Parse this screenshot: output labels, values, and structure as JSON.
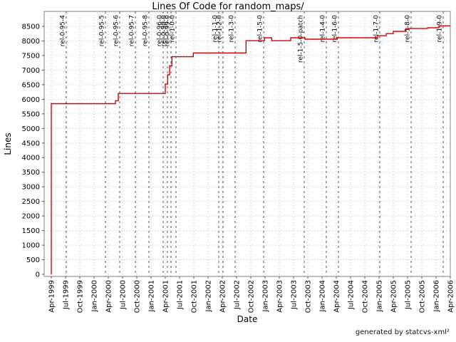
{
  "page": {
    "title": "Lines Of Code for random_maps/",
    "footer": "generated by statcvs-xml²"
  },
  "chart_data": {
    "type": "line",
    "subtype": "step",
    "title": "Lines Of Code for random_maps/",
    "xlabel": "Date",
    "ylabel": "Lines",
    "ylim": [
      0,
      9000
    ],
    "y_tick_step": 500,
    "y_ticks": [
      0,
      500,
      1000,
      1500,
      2000,
      2500,
      3000,
      3500,
      4000,
      4500,
      5000,
      5500,
      6000,
      6500,
      7000,
      7500,
      8000,
      8500
    ],
    "x_ticks": [
      "Apr-1999",
      "Jul-1999",
      "Oct-1999",
      "Jan-2000",
      "Apr-2000",
      "Jul-2000",
      "Oct-2000",
      "Jan-2001",
      "Apr-2001",
      "Jul-2001",
      "Oct-2001",
      "Jan-2002",
      "Apr-2002",
      "Jul-2002",
      "Oct-2002",
      "Jan-2003",
      "Apr-2003",
      "Jul-2003",
      "Oct-2003",
      "Jan-2004",
      "Apr-2004",
      "Jul-2004",
      "Oct-2004",
      "Jan-2005",
      "Apr-2005",
      "Jul-2005",
      "Oct-2005",
      "Jan-2006",
      "Apr-2006"
    ],
    "grid": true,
    "legend": "none",
    "series": [
      {
        "name": "Lines of Code",
        "color": "#dd0000",
        "steps": [
          {
            "date": "1999-04",
            "m": 0,
            "loc": 0
          },
          {
            "date": "1999-04",
            "m": 0,
            "loc": 5850
          },
          {
            "date": "2000-05",
            "m": 13.5,
            "loc": 5950
          },
          {
            "date": "2000-06",
            "m": 14.1,
            "loc": 6200
          },
          {
            "date": "2001-04",
            "m": 24.0,
            "loc": 6520
          },
          {
            "date": "2001-04",
            "m": 24.5,
            "loc": 6840
          },
          {
            "date": "2001-05",
            "m": 24.9,
            "loc": 7150
          },
          {
            "date": "2001-05",
            "m": 25.4,
            "loc": 7460
          },
          {
            "date": "2001-10",
            "m": 29.9,
            "loc": 7590
          },
          {
            "date": "2002-09",
            "m": 41.0,
            "loc": 8010
          },
          {
            "date": "2002-12",
            "m": 44.9,
            "loc": 8110
          },
          {
            "date": "2003-02",
            "m": 46.4,
            "loc": 8010
          },
          {
            "date": "2003-06",
            "m": 50.4,
            "loc": 8110
          },
          {
            "date": "2003-09",
            "m": 53.4,
            "loc": 8060
          },
          {
            "date": "2004-04",
            "m": 60.2,
            "loc": 8110
          },
          {
            "date": "2005-01",
            "m": 68.7,
            "loc": 8180
          },
          {
            "date": "2005-02",
            "m": 70.5,
            "loc": 8250
          },
          {
            "date": "2005-04",
            "m": 72.0,
            "loc": 8330
          },
          {
            "date": "2005-06",
            "m": 74.7,
            "loc": 8430
          },
          {
            "date": "2005-11",
            "m": 79.2,
            "loc": 8450
          },
          {
            "date": "2006-01",
            "m": 81.6,
            "loc": 8520
          }
        ]
      }
    ],
    "release_tags": [
      {
        "label": "rel-0-95-4",
        "date": "1999-07",
        "m": 3.15
      },
      {
        "label": "rel-0-95-5",
        "date": "2000-03",
        "m": 11.4
      },
      {
        "label": "rel-0-95-6",
        "date": "2000-06",
        "m": 14.4
      },
      {
        "label": "rel-0-95-7",
        "date": "2000-09",
        "m": 17.7
      },
      {
        "label": "rel-0-95-8",
        "date": "2000-12",
        "m": 20.55
      },
      {
        "label": "rel-0-96-0",
        "date": "2001-03",
        "m": 23.55
      },
      {
        "label": "rel-0-98-0",
        "date": "2001-04",
        "m": 24.45
      },
      {
        "label": "rel-0-99-0",
        "date": "2001-05",
        "m": 25.2
      },
      {
        "label": "rel-1-0-0",
        "date": "2001-06",
        "m": 26.25
      },
      {
        "label": "rel-1-1-0",
        "date": "2002-03",
        "m": 35.25
      },
      {
        "label": "rel-1-2-0",
        "date": "2002-04",
        "m": 36.15
      },
      {
        "label": "rel-1-3-0",
        "date": "2002-06",
        "m": 38.7
      },
      {
        "label": "rel-1-5-0",
        "date": "2002-12",
        "m": 44.7
      },
      {
        "label": "rel-1-5-0-patch",
        "date": "2003-09",
        "m": 53.25
      },
      {
        "label": "rel-1-4-0",
        "date": "2004-01",
        "m": 57.9
      },
      {
        "label": "rel-1-6-0",
        "date": "2004-04",
        "m": 60.45
      },
      {
        "label": "rel-1-7-0",
        "date": "2005-01",
        "m": 69.15
      },
      {
        "label": "rel-1-8-0",
        "date": "2005-07",
        "m": 75.75
      },
      {
        "label": "rel-1-9-0",
        "date": "2006-02",
        "m": 82.5
      }
    ],
    "colors": {
      "line": "#dd0000",
      "grid": "#bdbdbd",
      "tag_line": "#707070",
      "tag_label": "#333333",
      "border": "#808080",
      "tick": "#555555",
      "background": "#ffffff"
    }
  }
}
